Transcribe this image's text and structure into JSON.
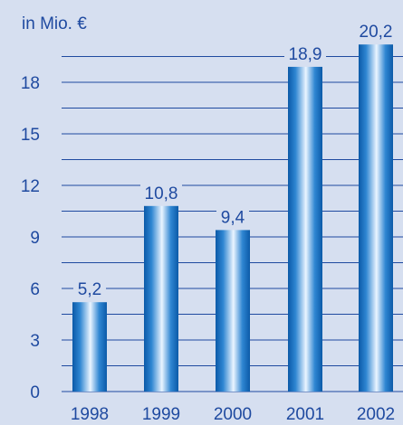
{
  "chart_data": {
    "type": "bar",
    "unit_label": "in Mio. €",
    "categories": [
      "1998",
      "1999",
      "2000",
      "2001",
      "2002"
    ],
    "values": [
      5.2,
      10.8,
      9.4,
      18.9,
      20.2
    ],
    "value_labels": [
      "5,2",
      "10,8",
      "9,4",
      "18,9",
      "20,2"
    ],
    "yticks": [
      0,
      3,
      6,
      9,
      12,
      15,
      18
    ],
    "ylim": [
      0,
      20.2
    ],
    "grid_step": 1.5,
    "grid": true,
    "colors": {
      "background": "#d6dff0",
      "axis_text": "#1f4aa0",
      "gridline": "#1f4aa0",
      "bar_dark": "#0b5aa8",
      "bar_mid": "#2f86d2",
      "bar_light": "#eaf4ff"
    }
  }
}
